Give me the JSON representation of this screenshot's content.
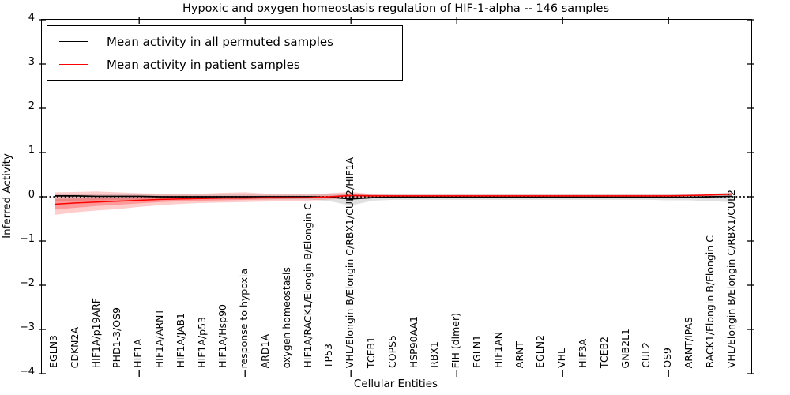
{
  "title": "Hypoxic and oxygen homeostasis regulation of HIF-1-alpha -- 146 samples",
  "axes": {
    "ylabel": "Inferred Activity",
    "xlabel": "Cellular Entities"
  },
  "legend": {
    "items": [
      {
        "label": "Mean activity in all permuted samples",
        "color": "#000000"
      },
      {
        "label": "Mean activity in patient samples",
        "color": "#ff0000"
      }
    ]
  },
  "colors": {
    "patient": "#ff0000",
    "permuted": "#000000",
    "patient_band": "#ff0000",
    "permuted_band": "#999999"
  },
  "chart_data": {
    "type": "line",
    "title": "Hypoxic and oxygen homeostasis regulation of HIF-1-alpha -- 146 samples",
    "xlabel": "Cellular Entities",
    "ylabel": "Inferred Activity",
    "ylim": [
      -4,
      4
    ],
    "grid": false,
    "legend_position": "upper left",
    "zero_reference_line": true,
    "yticks": [
      4,
      3,
      2,
      1,
      0,
      -1,
      -2,
      -3,
      -4
    ],
    "x_major_tick_indices": [
      4,
      9,
      14,
      19,
      24,
      29
    ],
    "categories": [
      "EGLN3",
      "CDKN2A",
      "HIF1A/p19ARF",
      "PHD1-3/OS9",
      "HIF1A",
      "HIF1A/ARNT",
      "HIF1A/JAB1",
      "HIF1A/p53",
      "HIF1A/Hsp90",
      "response to hypoxia",
      "ARD1A",
      "oxygen homeostasis",
      "HIF1A/RACK1/Elongin B/Elongin C",
      "TP53",
      "VHL/Elongin B/Elongin C/RBX1/CUL2/HIF1A",
      "TCEB1",
      "COPS5",
      "HSP90AA1",
      "RBX1",
      "FIH (dimer)",
      "EGLN1",
      "HIF1AN",
      "ARNT",
      "EGLN2",
      "VHL",
      "HIF3A",
      "TCEB2",
      "GNB2L1",
      "CUL2",
      "OS9",
      "ARNT/IPAS",
      "RACK1/Elongin B/Elongin C",
      "VHL/Elongin B/Elongin C/RBX1/CUL2"
    ],
    "series": [
      {
        "name": "permuted-range-band",
        "type": "band",
        "color": "#999999",
        "opacity": 0.3,
        "high": [
          0.07,
          0.06,
          0.06,
          0.06,
          0.06,
          0.05,
          0.05,
          0.05,
          0.05,
          0.05,
          0.05,
          0.05,
          0.05,
          0.06,
          0.08,
          0.05,
          0.05,
          0.05,
          0.05,
          0.05,
          0.05,
          0.05,
          0.05,
          0.05,
          0.05,
          0.05,
          0.05,
          0.05,
          0.05,
          0.05,
          0.06,
          0.07,
          0.09
        ],
        "low": [
          -0.1,
          -0.09,
          -0.08,
          -0.08,
          -0.07,
          -0.07,
          -0.06,
          -0.06,
          -0.06,
          -0.06,
          -0.06,
          -0.06,
          -0.06,
          -0.1,
          -0.2,
          -0.09,
          -0.07,
          -0.07,
          -0.07,
          -0.07,
          -0.07,
          -0.07,
          -0.07,
          -0.07,
          -0.07,
          -0.07,
          -0.07,
          -0.07,
          -0.07,
          -0.08,
          -0.08,
          -0.1,
          -0.12
        ]
      },
      {
        "name": "patient-range-band-outer",
        "type": "band",
        "color": "#ff0000",
        "opacity": 0.2,
        "high": [
          0.1,
          0.11,
          0.12,
          0.1,
          0.08,
          0.07,
          0.06,
          0.07,
          0.09,
          0.1,
          0.07,
          0.06,
          0.05,
          0.08,
          0.11,
          0.06,
          0.05,
          0.05,
          0.05,
          0.05,
          0.05,
          0.05,
          0.05,
          0.05,
          0.05,
          0.05,
          0.05,
          0.05,
          0.05,
          0.05,
          0.05,
          0.06,
          0.1
        ],
        "low": [
          -0.41,
          -0.35,
          -0.31,
          -0.28,
          -0.23,
          -0.19,
          -0.16,
          -0.14,
          -0.13,
          -0.12,
          -0.11,
          -0.1,
          -0.09,
          -0.06,
          -0.04,
          -0.03,
          -0.02,
          -0.02,
          -0.02,
          -0.02,
          -0.02,
          -0.02,
          -0.02,
          -0.02,
          -0.02,
          -0.02,
          -0.02,
          -0.02,
          -0.02,
          -0.02,
          -0.01,
          -0.01,
          0.02
        ]
      },
      {
        "name": "patient-range-band-inner",
        "type": "band",
        "color": "#ff0000",
        "opacity": 0.25,
        "high": [
          -0.05,
          -0.04,
          -0.03,
          -0.02,
          -0.01,
          0.0,
          0.0,
          0.01,
          0.01,
          0.01,
          0.01,
          0.01,
          0.01,
          0.02,
          0.06,
          0.04,
          0.03,
          0.03,
          0.03,
          0.03,
          0.03,
          0.03,
          0.03,
          0.03,
          0.03,
          0.03,
          0.03,
          0.03,
          0.03,
          0.03,
          0.04,
          0.05,
          0.08
        ],
        "low": [
          -0.29,
          -0.25,
          -0.21,
          -0.18,
          -0.15,
          -0.12,
          -0.1,
          -0.09,
          -0.08,
          -0.07,
          -0.06,
          -0.05,
          -0.04,
          -0.02,
          0.0,
          0.0,
          0.01,
          0.01,
          0.01,
          0.01,
          0.01,
          0.01,
          0.01,
          0.01,
          0.01,
          0.01,
          0.01,
          0.01,
          0.01,
          0.01,
          0.02,
          0.03,
          0.04
        ]
      },
      {
        "name": "Mean activity in all permuted samples",
        "type": "line",
        "color": "#000000",
        "width": 1.7,
        "values": [
          0.02,
          0.02,
          0.01,
          0.01,
          0.01,
          0.0,
          0.0,
          0.0,
          0.0,
          0.0,
          0.0,
          0.0,
          0.0,
          -0.01,
          -0.05,
          -0.02,
          -0.01,
          -0.01,
          -0.01,
          -0.01,
          -0.01,
          -0.01,
          -0.01,
          -0.01,
          -0.01,
          -0.01,
          -0.01,
          -0.01,
          -0.01,
          -0.01,
          -0.01,
          0.0,
          0.01
        ]
      },
      {
        "name": "Mean activity in patient samples",
        "type": "line",
        "color": "#ff0000",
        "width": 1.5,
        "values": [
          -0.17,
          -0.14,
          -0.12,
          -0.1,
          -0.08,
          -0.06,
          -0.05,
          -0.04,
          -0.03,
          -0.03,
          -0.02,
          -0.02,
          -0.02,
          0.0,
          0.03,
          0.02,
          0.02,
          0.02,
          0.02,
          0.02,
          0.02,
          0.02,
          0.02,
          0.02,
          0.02,
          0.02,
          0.02,
          0.02,
          0.02,
          0.02,
          0.03,
          0.04,
          0.06
        ]
      }
    ]
  }
}
